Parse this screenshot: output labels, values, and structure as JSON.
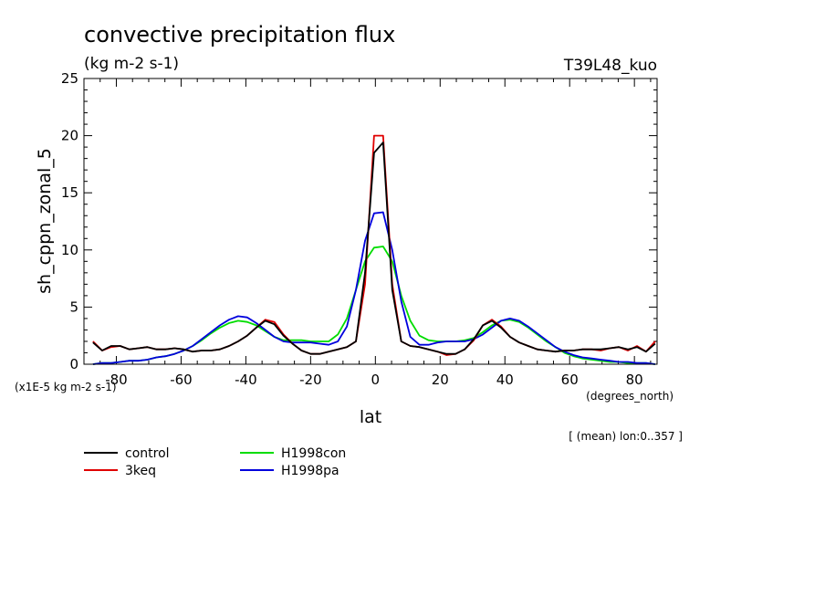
{
  "chart_data": {
    "type": "line",
    "title": "convective precipitation flux",
    "subtitle": "(kg m-2 s-1)",
    "run_label": "T39L48_kuo",
    "xlabel": "lat",
    "x_units": "(degrees_north)",
    "ylabel": "sh_cppn_zonal_5",
    "y_units": "(x1E-5 kg m-2 s-1)",
    "note": "[ (mean) lon:0..357 ]",
    "xlim": [
      -90,
      87
    ],
    "ylim": [
      0,
      25
    ],
    "x_ticks": [
      -80,
      -60,
      -40,
      -20,
      0,
      20,
      40,
      60,
      80
    ],
    "y_ticks": [
      0,
      5,
      10,
      15,
      20,
      25
    ],
    "x_tick_labels": [
      "-80",
      "-60",
      "-40",
      "-20",
      "0",
      "20",
      "40",
      "60",
      "80"
    ],
    "y_tick_labels": [
      "0",
      "5",
      "10",
      "15",
      "20",
      "25"
    ],
    "legend_position": "bottom",
    "x": [
      -87.2,
      -84.4,
      -81.6,
      -78.8,
      -76,
      -73.2,
      -70.4,
      -67.6,
      -64.8,
      -62,
      -59.2,
      -56.4,
      -53.6,
      -50.8,
      -48,
      -45.2,
      -42.4,
      -39.6,
      -36.8,
      -34,
      -31.2,
      -28.4,
      -25.6,
      -22.8,
      -20,
      -17.2,
      -14.4,
      -11.6,
      -8.8,
      -6,
      -3.2,
      -0.4,
      2.4,
      5.2,
      8,
      10.8,
      13.6,
      16.4,
      19.2,
      22,
      24.8,
      27.6,
      30.4,
      33.2,
      36,
      38.8,
      41.6,
      44.4,
      47.2,
      50,
      52.8,
      55.6,
      58.4,
      61.2,
      64,
      66.8,
      69.6,
      72.4,
      75.2,
      78,
      80.8,
      83.6,
      86.4
    ],
    "series": [
      {
        "name": "control",
        "color": "#000000",
        "values": [
          1.9,
          1.2,
          1.6,
          1.6,
          1.3,
          1.4,
          1.5,
          1.3,
          1.3,
          1.4,
          1.3,
          1.1,
          1.2,
          1.2,
          1.3,
          1.6,
          2.0,
          2.5,
          3.2,
          3.8,
          3.5,
          2.5,
          1.8,
          1.2,
          0.9,
          0.9,
          1.1,
          1.3,
          1.5,
          2.0,
          8.0,
          18.5,
          19.4,
          6.5,
          2.0,
          1.6,
          1.5,
          1.3,
          1.1,
          0.9,
          0.9,
          1.3,
          2.2,
          3.4,
          3.8,
          3.2,
          2.4,
          1.9,
          1.6,
          1.3,
          1.2,
          1.1,
          1.2,
          1.2,
          1.3,
          1.3,
          1.3,
          1.4,
          1.5,
          1.3,
          1.5,
          1.1,
          1.8
        ]
      },
      {
        "name": "3keq",
        "color": "#e00000",
        "values": [
          2.0,
          1.2,
          1.5,
          1.6,
          1.3,
          1.4,
          1.5,
          1.3,
          1.3,
          1.4,
          1.3,
          1.1,
          1.2,
          1.2,
          1.3,
          1.6,
          2.0,
          2.5,
          3.2,
          3.9,
          3.7,
          2.6,
          1.8,
          1.2,
          0.9,
          0.9,
          1.1,
          1.3,
          1.5,
          2.0,
          7.0,
          20.0,
          20.0,
          7.0,
          2.0,
          1.6,
          1.5,
          1.3,
          1.1,
          0.8,
          0.9,
          1.3,
          2.1,
          3.4,
          3.9,
          3.3,
          2.4,
          1.9,
          1.6,
          1.3,
          1.2,
          1.1,
          1.2,
          1.2,
          1.3,
          1.3,
          1.2,
          1.4,
          1.5,
          1.2,
          1.6,
          1.1,
          2.0
        ]
      },
      {
        "name": "H1998con",
        "color": "#00dd00",
        "values": [
          0.0,
          0.1,
          0.1,
          0.2,
          0.3,
          0.3,
          0.4,
          0.6,
          0.7,
          0.9,
          1.2,
          1.6,
          2.1,
          2.7,
          3.2,
          3.6,
          3.8,
          3.7,
          3.4,
          2.9,
          2.4,
          2.1,
          2.1,
          2.1,
          2.0,
          2.0,
          2.0,
          2.6,
          4.0,
          6.5,
          9.0,
          10.2,
          10.3,
          9.0,
          6.0,
          3.8,
          2.5,
          2.1,
          2.0,
          2.0,
          2.0,
          2.1,
          2.3,
          2.8,
          3.4,
          3.8,
          3.9,
          3.7,
          3.2,
          2.6,
          2.0,
          1.5,
          1.0,
          0.7,
          0.5,
          0.4,
          0.3,
          0.2,
          0.2,
          0.1,
          0.1,
          0.1,
          0.0
        ]
      },
      {
        "name": "H1998pa",
        "color": "#0000dd",
        "values": [
          0.0,
          0.1,
          0.1,
          0.2,
          0.3,
          0.3,
          0.4,
          0.6,
          0.7,
          0.9,
          1.2,
          1.6,
          2.2,
          2.8,
          3.4,
          3.9,
          4.2,
          4.1,
          3.6,
          3.0,
          2.4,
          2.0,
          1.9,
          1.9,
          1.9,
          1.8,
          1.7,
          2.0,
          3.3,
          6.5,
          10.8,
          13.2,
          13.3,
          10.0,
          5.5,
          2.4,
          1.7,
          1.7,
          1.9,
          2.0,
          2.0,
          2.0,
          2.2,
          2.6,
          3.2,
          3.8,
          4.0,
          3.8,
          3.3,
          2.7,
          2.1,
          1.5,
          1.1,
          0.8,
          0.6,
          0.5,
          0.4,
          0.3,
          0.2,
          0.2,
          0.1,
          0.1,
          0.0
        ]
      }
    ]
  }
}
